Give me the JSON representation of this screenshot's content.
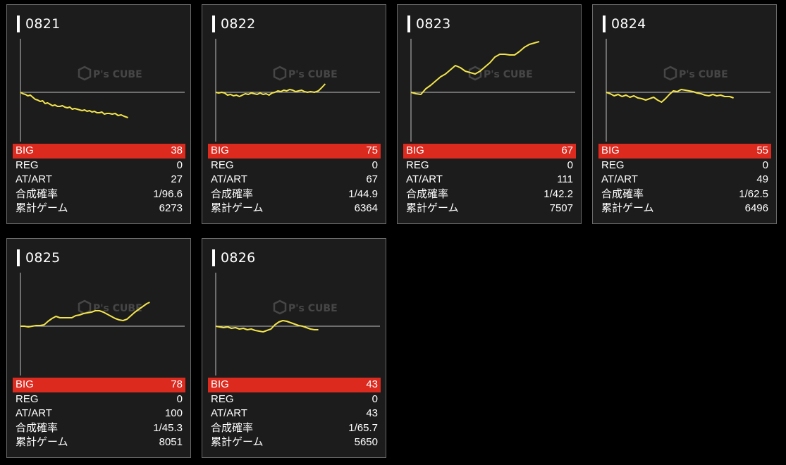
{
  "colors": {
    "accent": "#dc2a1f",
    "line": "#f2e44c",
    "axis": "#bfbfbf",
    "card_bg": "#1c1c1c",
    "border": "#6a6a6a"
  },
  "stat_labels": {
    "big": "BIG",
    "reg": "REG",
    "atart": "AT/ART",
    "prob": "合成確率",
    "games": "累計ゲーム"
  },
  "watermark": {
    "brand": "P's CUBE"
  },
  "machines": [
    {
      "id": "0821",
      "big": "38",
      "reg": "0",
      "atart": "27",
      "prob": "1/96.6",
      "games": "6273",
      "graph": [
        [
          0,
          0
        ],
        [
          5,
          -2
        ],
        [
          10,
          -3
        ],
        [
          15,
          -5
        ],
        [
          20,
          -4
        ],
        [
          25,
          -7
        ],
        [
          30,
          -10
        ],
        [
          35,
          -11
        ],
        [
          40,
          -13
        ],
        [
          45,
          -12
        ],
        [
          50,
          -16
        ],
        [
          55,
          -15
        ],
        [
          60,
          -17
        ],
        [
          65,
          -19
        ],
        [
          70,
          -18
        ],
        [
          75,
          -20
        ],
        [
          80,
          -20
        ],
        [
          85,
          -19
        ],
        [
          90,
          -21
        ],
        [
          95,
          -22
        ],
        [
          100,
          -21
        ],
        [
          105,
          -24
        ],
        [
          110,
          -23
        ],
        [
          115,
          -24
        ],
        [
          120,
          -25
        ],
        [
          125,
          -26
        ],
        [
          130,
          -25
        ],
        [
          135,
          -27
        ],
        [
          140,
          -26
        ],
        [
          145,
          -28
        ],
        [
          150,
          -27
        ],
        [
          155,
          -29
        ],
        [
          160,
          -29
        ],
        [
          165,
          -28
        ],
        [
          170,
          -31
        ],
        [
          175,
          -30
        ],
        [
          180,
          -30
        ],
        [
          186,
          -31
        ],
        [
          192,
          -30
        ],
        [
          198,
          -33
        ],
        [
          204,
          -32
        ],
        [
          210,
          -34
        ],
        [
          218,
          -36
        ]
      ]
    },
    {
      "id": "0822",
      "big": "75",
      "reg": "0",
      "atart": "67",
      "prob": "1/44.9",
      "games": "6364",
      "graph": [
        [
          0,
          0
        ],
        [
          6,
          -1
        ],
        [
          12,
          0
        ],
        [
          18,
          -1
        ],
        [
          24,
          -4
        ],
        [
          30,
          -3
        ],
        [
          36,
          -5
        ],
        [
          42,
          -4
        ],
        [
          48,
          -6
        ],
        [
          54,
          -4
        ],
        [
          60,
          -2
        ],
        [
          66,
          -3
        ],
        [
          72,
          -1
        ],
        [
          78,
          -2
        ],
        [
          84,
          -3
        ],
        [
          90,
          -1
        ],
        [
          96,
          -3
        ],
        [
          102,
          -2
        ],
        [
          108,
          -4
        ],
        [
          114,
          -1
        ],
        [
          120,
          0
        ],
        [
          126,
          2
        ],
        [
          132,
          1
        ],
        [
          138,
          3
        ],
        [
          144,
          2
        ],
        [
          150,
          4
        ],
        [
          156,
          3
        ],
        [
          162,
          1
        ],
        [
          168,
          2
        ],
        [
          174,
          3
        ],
        [
          180,
          1
        ],
        [
          186,
          0
        ],
        [
          192,
          1
        ],
        [
          200,
          0
        ],
        [
          208,
          2
        ],
        [
          214,
          6
        ],
        [
          222,
          12
        ]
      ]
    },
    {
      "id": "0823",
      "big": "67",
      "reg": "0",
      "atart": "111",
      "prob": "1/42.2",
      "games": "7507",
      "graph": [
        [
          0,
          0
        ],
        [
          10,
          -2
        ],
        [
          20,
          -3
        ],
        [
          30,
          5
        ],
        [
          40,
          10
        ],
        [
          50,
          16
        ],
        [
          60,
          22
        ],
        [
          70,
          26
        ],
        [
          80,
          32
        ],
        [
          90,
          38
        ],
        [
          100,
          35
        ],
        [
          110,
          30
        ],
        [
          120,
          28
        ],
        [
          130,
          26
        ],
        [
          140,
          30
        ],
        [
          150,
          36
        ],
        [
          160,
          42
        ],
        [
          170,
          50
        ],
        [
          180,
          54
        ],
        [
          190,
          54
        ],
        [
          200,
          53
        ],
        [
          210,
          53
        ],
        [
          220,
          58
        ],
        [
          230,
          64
        ],
        [
          240,
          68
        ],
        [
          250,
          70
        ],
        [
          260,
          72
        ]
      ]
    },
    {
      "id": "0824",
      "big": "55",
      "reg": "0",
      "atart": "49",
      "prob": "1/62.5",
      "games": "6496",
      "graph": [
        [
          0,
          0
        ],
        [
          8,
          -2
        ],
        [
          16,
          -5
        ],
        [
          24,
          -3
        ],
        [
          32,
          -6
        ],
        [
          40,
          -4
        ],
        [
          48,
          -7
        ],
        [
          56,
          -5
        ],
        [
          64,
          -8
        ],
        [
          72,
          -9
        ],
        [
          80,
          -11
        ],
        [
          88,
          -9
        ],
        [
          96,
          -7
        ],
        [
          104,
          -11
        ],
        [
          112,
          -14
        ],
        [
          120,
          -9
        ],
        [
          128,
          -3
        ],
        [
          136,
          2
        ],
        [
          144,
          1
        ],
        [
          152,
          4
        ],
        [
          160,
          3
        ],
        [
          168,
          2
        ],
        [
          176,
          1
        ],
        [
          184,
          -1
        ],
        [
          192,
          -2
        ],
        [
          200,
          -4
        ],
        [
          208,
          -5
        ],
        [
          216,
          -3
        ],
        [
          224,
          -5
        ],
        [
          232,
          -4
        ],
        [
          240,
          -6
        ],
        [
          250,
          -6
        ],
        [
          258,
          -8
        ]
      ]
    },
    {
      "id": "0825",
      "big": "78",
      "reg": "0",
      "atart": "100",
      "prob": "1/45.3",
      "games": "8051",
      "graph": [
        [
          0,
          0
        ],
        [
          8,
          0
        ],
        [
          16,
          -1
        ],
        [
          24,
          0
        ],
        [
          32,
          1
        ],
        [
          40,
          1
        ],
        [
          48,
          2
        ],
        [
          56,
          7
        ],
        [
          64,
          11
        ],
        [
          72,
          14
        ],
        [
          80,
          12
        ],
        [
          88,
          12
        ],
        [
          96,
          12
        ],
        [
          104,
          12
        ],
        [
          112,
          15
        ],
        [
          120,
          16
        ],
        [
          128,
          18
        ],
        [
          136,
          19
        ],
        [
          144,
          20
        ],
        [
          152,
          22
        ],
        [
          160,
          22
        ],
        [
          168,
          20
        ],
        [
          176,
          17
        ],
        [
          184,
          14
        ],
        [
          192,
          11
        ],
        [
          200,
          9
        ],
        [
          208,
          8
        ],
        [
          216,
          10
        ],
        [
          224,
          15
        ],
        [
          232,
          20
        ],
        [
          240,
          24
        ],
        [
          248,
          28
        ],
        [
          256,
          32
        ],
        [
          262,
          34
        ]
      ]
    },
    {
      "id": "0826",
      "big": "43",
      "reg": "0",
      "atart": "43",
      "prob": "1/65.7",
      "games": "5650",
      "graph": [
        [
          0,
          0
        ],
        [
          8,
          -1
        ],
        [
          16,
          -2
        ],
        [
          24,
          -1
        ],
        [
          32,
          -3
        ],
        [
          40,
          -2
        ],
        [
          48,
          -4
        ],
        [
          56,
          -3
        ],
        [
          64,
          -5
        ],
        [
          72,
          -4
        ],
        [
          80,
          -6
        ],
        [
          88,
          -7
        ],
        [
          96,
          -8
        ],
        [
          104,
          -6
        ],
        [
          112,
          -4
        ],
        [
          120,
          2
        ],
        [
          128,
          6
        ],
        [
          136,
          8
        ],
        [
          144,
          7
        ],
        [
          152,
          5
        ],
        [
          160,
          3
        ],
        [
          168,
          1
        ],
        [
          176,
          0
        ],
        [
          184,
          -2
        ],
        [
          192,
          -4
        ],
        [
          200,
          -5
        ],
        [
          208,
          -5
        ]
      ]
    }
  ]
}
